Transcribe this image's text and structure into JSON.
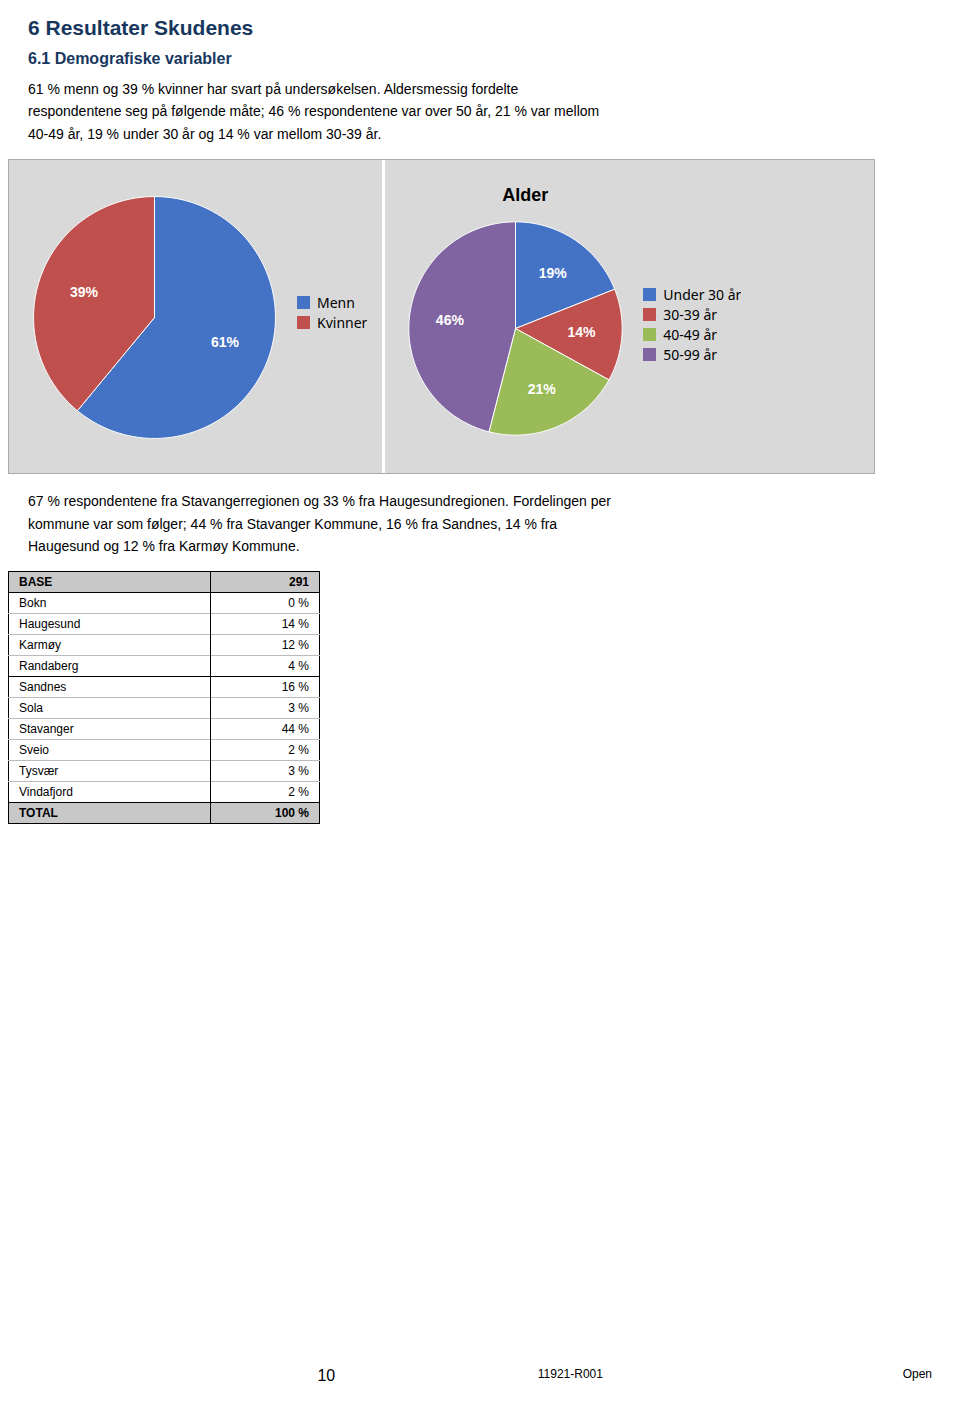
{
  "page_title": "6   Resultater Skudenes",
  "section_title": "6.1   Demografiske variabler",
  "intro_text": "61 % menn og 39 % kvinner har svart på undersøkelsen. Aldersmessig fordelte\nrespondentene seg på følgende måte; 46 % respondentene var over 50 år, 21 % var mellom\n40-49 år, 19 % under 30 år og 14 % var mellom 30-39 år.",
  "paragraph2": "67 % respondentene fra Stavangerregionen og 33 % fra Haugesundregionen. Fordelingen per\nkommune var som følger; 44 % fra Stavanger Kommune, 16 % fra Sandnes, 14 % fra\nHaugesund og 12 % fra Karmøy Kommune.",
  "table": {
    "header": [
      "BASE",
      "291"
    ],
    "rows": [
      [
        "Bokn",
        "0 %"
      ],
      [
        "Haugesund",
        "14 %"
      ],
      [
        "Karmøy",
        "12 %"
      ],
      [
        "Randaberg",
        "4 %"
      ],
      [
        "Sandnes",
        "16 %"
      ],
      [
        "Sola",
        "3 %"
      ],
      [
        "Stavanger",
        "44 %"
      ],
      [
        "Sveio",
        "2 %"
      ],
      [
        "Tysvær",
        "3 %"
      ],
      [
        "Vindafjord",
        "2 %"
      ]
    ],
    "footer": [
      "TOTAL",
      "100 %"
    ]
  },
  "footer": [
    "10",
    "11921-R001",
    "Open"
  ],
  "chart_data": [
    {
      "type": "pie",
      "categories": [
        "Menn",
        "Kvinner"
      ],
      "values": [
        61,
        39
      ],
      "value_labels": [
        "61%",
        "39%"
      ],
      "colors": [
        "#4472C4",
        "#C0504D"
      ],
      "legend": "right"
    },
    {
      "type": "pie",
      "title": "Alder",
      "categories": [
        "Under 30 år",
        "30-39 år",
        "40-49 år",
        "50-99 år"
      ],
      "values": [
        19,
        14,
        21,
        46
      ],
      "value_labels": [
        "19%",
        "14%",
        "21%",
        "46%"
      ],
      "colors": [
        "#4472C4",
        "#C0504D",
        "#9BBB59",
        "#8064A2"
      ],
      "legend": "right"
    }
  ]
}
